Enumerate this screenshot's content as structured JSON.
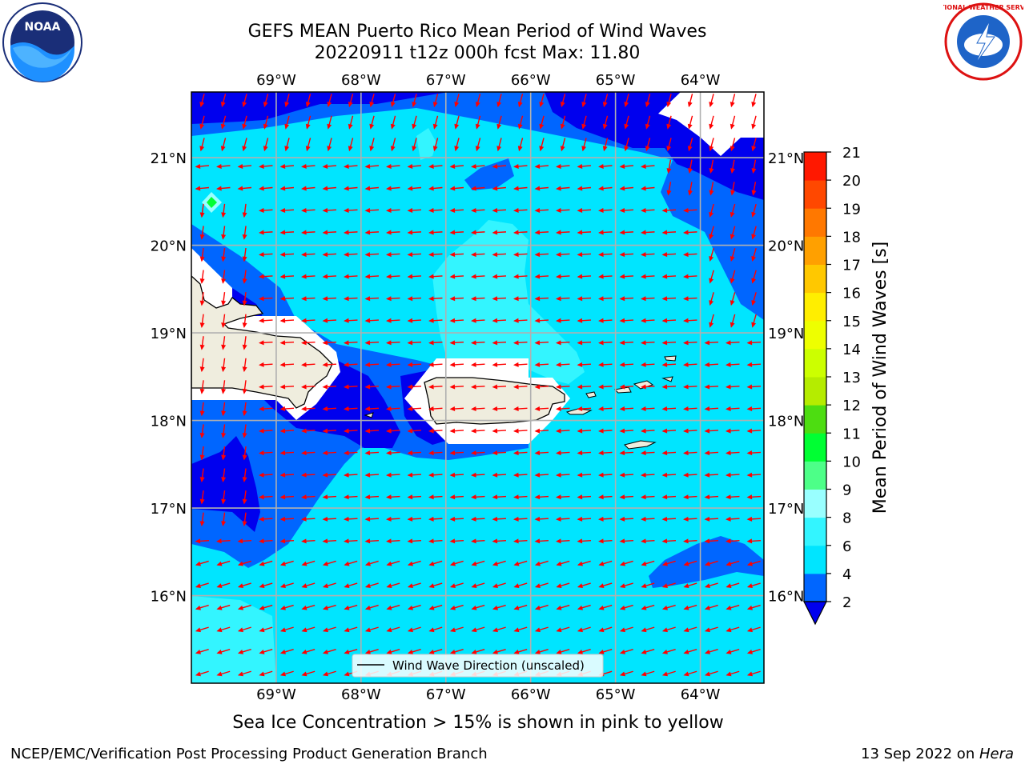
{
  "title_line1": "GEFS MEAN Puerto Rico Mean Period of Wind Waves",
  "title_line2": "20220911 t12z 000h fcst   Max: 11.80",
  "footer_left": "NCEP/EMC/Verification Post Processing Product Generation Branch",
  "footer_date": "13 Sep 2022 on ",
  "footer_host": "Hera",
  "note": "Sea Ice Concentration > 15% is shown in pink to yellow",
  "legend_label": "Wind Wave Direction (unscaled)",
  "logos": {
    "left": "noaa-logo",
    "left_text": "NOAA",
    "right": "nws-logo",
    "right_text": "NATIONAL WEATHER SERVICE"
  },
  "colorbar": {
    "label": "Mean Period of Wind Waves [s]",
    "ticks": [
      "2",
      "4",
      "6",
      "8",
      "9",
      "10",
      "11",
      "12",
      "13",
      "14",
      "15",
      "16",
      "17",
      "18",
      "19",
      "20",
      "21"
    ],
    "colors": [
      "#0066ff",
      "#00e5ff",
      "#33f5ff",
      "#99ffff",
      "#4dff88",
      "#00ff33",
      "#4ddd11",
      "#b5ec00",
      "#ccff00",
      "#eeff00",
      "#ffee00",
      "#ffc800",
      "#ffa000",
      "#ff7800",
      "#ff4800",
      "#ff1800"
    ],
    "under_color": "#0000ee"
  },
  "map": {
    "lon_range": [
      -70.0,
      -63.25
    ],
    "lat_range": [
      15.0,
      21.75
    ],
    "lon_ticks": [
      -69,
      -68,
      -67,
      -66,
      -65,
      -64
    ],
    "lon_labels": [
      "69°W",
      "68°W",
      "67°W",
      "66°W",
      "65°W",
      "64°W"
    ],
    "lat_ticks": [
      16,
      17,
      18,
      19,
      20,
      21
    ],
    "lat_labels": [
      "16°N",
      "17°N",
      "18°N",
      "19°N",
      "20°N",
      "21°N"
    ],
    "arrow_color": "#ff0000",
    "land_color": "#efedde"
  }
}
